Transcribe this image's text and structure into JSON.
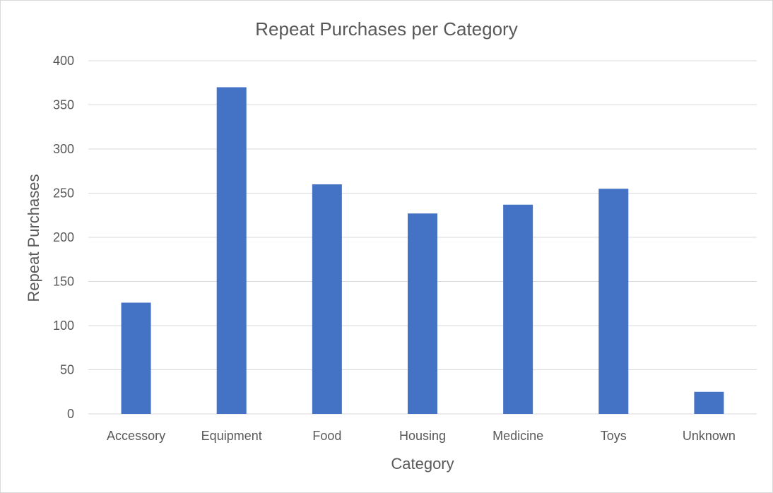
{
  "chart_data": {
    "type": "bar",
    "title": "Repeat Purchases per Category",
    "xlabel": "Category",
    "ylabel": "Repeat Purchases",
    "categories": [
      "Accessory",
      "Equipment",
      "Food",
      "Housing",
      "Medicine",
      "Toys",
      "Unknown"
    ],
    "series": [
      {
        "values": [
          126,
          370,
          260,
          227,
          237,
          255,
          25
        ]
      }
    ],
    "ylim": [
      0,
      400
    ],
    "yticks": [
      0,
      50,
      100,
      150,
      200,
      250,
      300,
      350,
      400
    ],
    "grid": true,
    "legend": "none",
    "colors": {
      "bar": "#4472C4",
      "grid": "#d9d9d9",
      "text": "#595959"
    }
  }
}
